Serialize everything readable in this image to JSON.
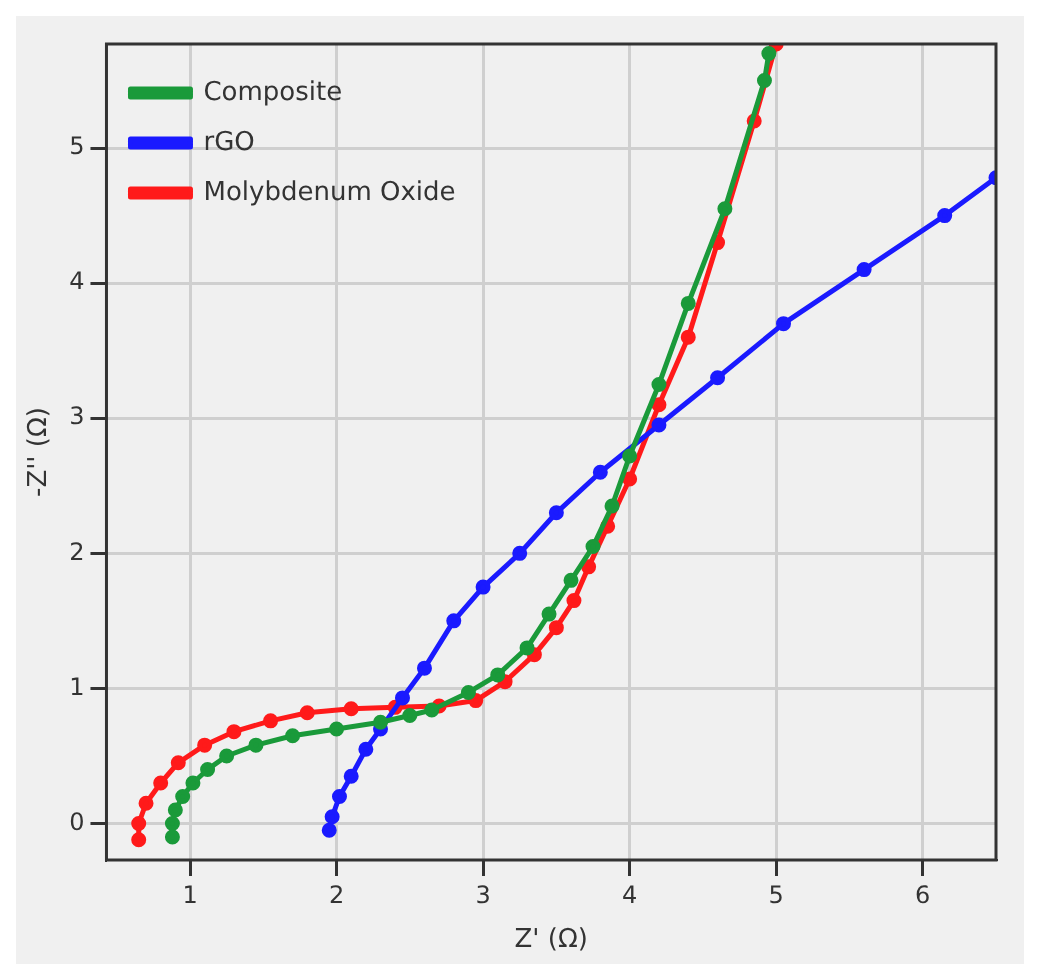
{
  "chart_data": {
    "type": "line",
    "xlabel": "Z' (Ω)",
    "ylabel": "-Z'' (Ω)",
    "xlim": [
      0.43,
      6.5
    ],
    "ylim": [
      -0.27,
      5.77
    ],
    "xticks": [
      1,
      2,
      3,
      4,
      5,
      6
    ],
    "yticks": [
      0,
      1,
      2,
      3,
      4,
      5
    ],
    "grid": true,
    "legend": "top left",
    "marker": "circle",
    "line_style": "solid",
    "series": [
      {
        "name": "Composite",
        "color": "#1a9a3a",
        "x": [
          0.88,
          0.88,
          0.9,
          0.95,
          1.02,
          1.12,
          1.25,
          1.45,
          1.7,
          2.0,
          2.3,
          2.5,
          2.65,
          2.9,
          3.1,
          3.3,
          3.45,
          3.6,
          3.75,
          3.88,
          4.0,
          4.2,
          4.4,
          4.65,
          4.92,
          4.95
        ],
        "values": [
          -0.1,
          0,
          0.1,
          0.2,
          0.3,
          0.4,
          0.5,
          0.58,
          0.65,
          0.7,
          0.75,
          0.8,
          0.84,
          0.97,
          1.1,
          1.3,
          1.55,
          1.8,
          2.05,
          2.35,
          2.72,
          3.25,
          3.85,
          4.55,
          5.5,
          5.7
        ]
      },
      {
        "name": "rGO",
        "color": "#1a1aff",
        "x": [
          1.95,
          1.97,
          2.02,
          2.1,
          2.2,
          2.3,
          2.45,
          2.6,
          2.8,
          3.0,
          3.25,
          3.5,
          3.8,
          4.2,
          4.6,
          5.05,
          5.6,
          6.15,
          6.5
        ],
        "values": [
          -0.05,
          0.05,
          0.2,
          0.35,
          0.55,
          0.7,
          0.93,
          1.15,
          1.5,
          1.75,
          2.0,
          2.3,
          2.6,
          2.95,
          3.3,
          3.7,
          4.1,
          4.5,
          4.78
        ]
      },
      {
        "name": "Molybdenum Oxide",
        "color": "#ff1a1a",
        "x": [
          0.65,
          0.65,
          0.7,
          0.8,
          0.92,
          1.1,
          1.3,
          1.55,
          1.8,
          2.1,
          2.4,
          2.7,
          2.95,
          3.15,
          3.35,
          3.5,
          3.62,
          3.72,
          3.85,
          4.0,
          4.2,
          4.4,
          4.6,
          4.85,
          5.0
        ],
        "values": [
          -0.12,
          0,
          0.15,
          0.3,
          0.45,
          0.58,
          0.68,
          0.76,
          0.82,
          0.85,
          0.86,
          0.87,
          0.91,
          1.05,
          1.25,
          1.45,
          1.65,
          1.9,
          2.2,
          2.55,
          3.1,
          3.6,
          4.3,
          5.2,
          5.77
        ]
      }
    ]
  }
}
